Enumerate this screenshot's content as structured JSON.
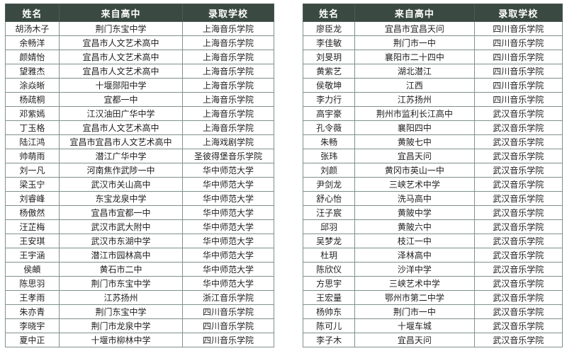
{
  "colors": {
    "header_bg": "#3a4a42",
    "header_fg": "#ffffff",
    "grid": "#7e918b",
    "outer_border": "#4d5a55",
    "cell_fg": "#1f1f1f",
    "page_bg": "#ffffff"
  },
  "tables": [
    {
      "headers": [
        "姓名",
        "来自高中",
        "录取学校"
      ],
      "rows": [
        [
          "胡汤木子",
          "荆门东宝中学",
          "上海音乐学院"
        ],
        [
          "余畅洋",
          "宜昌市人文艺术高中",
          "上海音乐学院"
        ],
        [
          "颜婧怡",
          "宜昌市人文艺术高中",
          "上海音乐学院"
        ],
        [
          "望雅杰",
          "宜昌市人文艺术高中",
          "上海音乐学院"
        ],
        [
          "涂焱晰",
          "十堰郧阳中学",
          "上海音乐学院"
        ],
        [
          "杨疏桐",
          "宜都一中",
          "上海音乐学院"
        ],
        [
          "邓紫嫣",
          "江汉油田广华中学",
          "上海音乐学院"
        ],
        [
          "丁玉格",
          "宜昌市人文艺术高中",
          "上海音乐学院"
        ],
        [
          "陆江鸿",
          "宜昌市宜昌市人文艺术高中",
          "上海戏剧学院"
        ],
        [
          "帅萌雨",
          "潜江广华中学",
          "圣彼得堡音乐学院"
        ],
        [
          "刘一凡",
          "河南焦作武陟一中",
          "华中师范大学"
        ],
        [
          "梁玉宁",
          "武汉市关山高中",
          "华中师范大学"
        ],
        [
          "刘睿峰",
          "东宝龙泉中学",
          "华中师范大学"
        ],
        [
          "杨傲然",
          "宜昌市宜都一中",
          "华中师范大学"
        ],
        [
          "汪芷梅",
          "武汉市武大附中",
          "华中师范大学"
        ],
        [
          "王安琪",
          "武汉市东湖中学",
          "华中师范大学"
        ],
        [
          "王宇涵",
          "潜江市园林高中",
          "华中师范大学"
        ],
        [
          "侯頔",
          "黄石市二中",
          "华中师范大学"
        ],
        [
          "陈思羽",
          "荆门市东宝中学",
          "华中师范大学"
        ],
        [
          "王孝雨",
          "江苏扬州",
          "浙江音乐学院"
        ],
        [
          "朱亦青",
          "荆门东宝中学",
          "四川音乐学院"
        ],
        [
          "李晓宇",
          "荆门市龙泉中学",
          "四川音乐学院"
        ],
        [
          "夏中正",
          "十堰市柳林中学",
          "四川音乐学院"
        ]
      ]
    },
    {
      "headers": [
        "姓名",
        "来自高中",
        "录取学校"
      ],
      "rows": [
        [
          "廖臣龙",
          "宜昌市宜昌天问",
          "四川音乐学院"
        ],
        [
          "李佳敏",
          "荆门市一中",
          "四川音乐学院"
        ],
        [
          "刘旻玥",
          "襄阳市二十四中",
          "四川音乐学院"
        ],
        [
          "黄紫艺",
          "湖北潜江",
          "四川音乐学院"
        ],
        [
          "侯敬坤",
          "江西",
          "四川音乐学院"
        ],
        [
          "李力行",
          "江苏扬州",
          "四川音乐学院"
        ],
        [
          "高宇豪",
          "荆州市监利长江高中",
          "武汉音乐学院"
        ],
        [
          "孔令薇",
          "襄阳四中",
          "武汉音乐学院"
        ],
        [
          "朱畅",
          "黄陂七中",
          "武汉音乐学院"
        ],
        [
          "张玮",
          "宜昌天问",
          "武汉音乐学院"
        ],
        [
          "刘颜",
          "黄冈市英山一中",
          "武汉音乐学院"
        ],
        [
          "尹剑龙",
          "三峡艺术中学",
          "武汉音乐学院"
        ],
        [
          "舒心怡",
          "洗马高中",
          "武汉音乐学院"
        ],
        [
          "汪子宸",
          "黄陂中学",
          "武汉音乐学院"
        ],
        [
          "邱羽",
          "黄陂六中",
          "武汉音乐学院"
        ],
        [
          "吴梦龙",
          "枝江一中",
          "武汉音乐学院"
        ],
        [
          "杜玥",
          "泽林高中",
          "武汉音乐学院"
        ],
        [
          "陈欣仪",
          "沙洋中学",
          "武汉音乐学院"
        ],
        [
          "方思宇",
          "三峡艺术中学",
          "武汉音乐学院"
        ],
        [
          "王宏量",
          "鄂州市第二中学",
          "武汉音乐学院"
        ],
        [
          "杨帅东",
          "荆门市一中",
          "武汉音乐学院"
        ],
        [
          "陈可儿",
          "十堰车城",
          "武汉音乐学院"
        ],
        [
          "李子木",
          "宜昌天问",
          "武汉音乐学院"
        ]
      ]
    }
  ]
}
